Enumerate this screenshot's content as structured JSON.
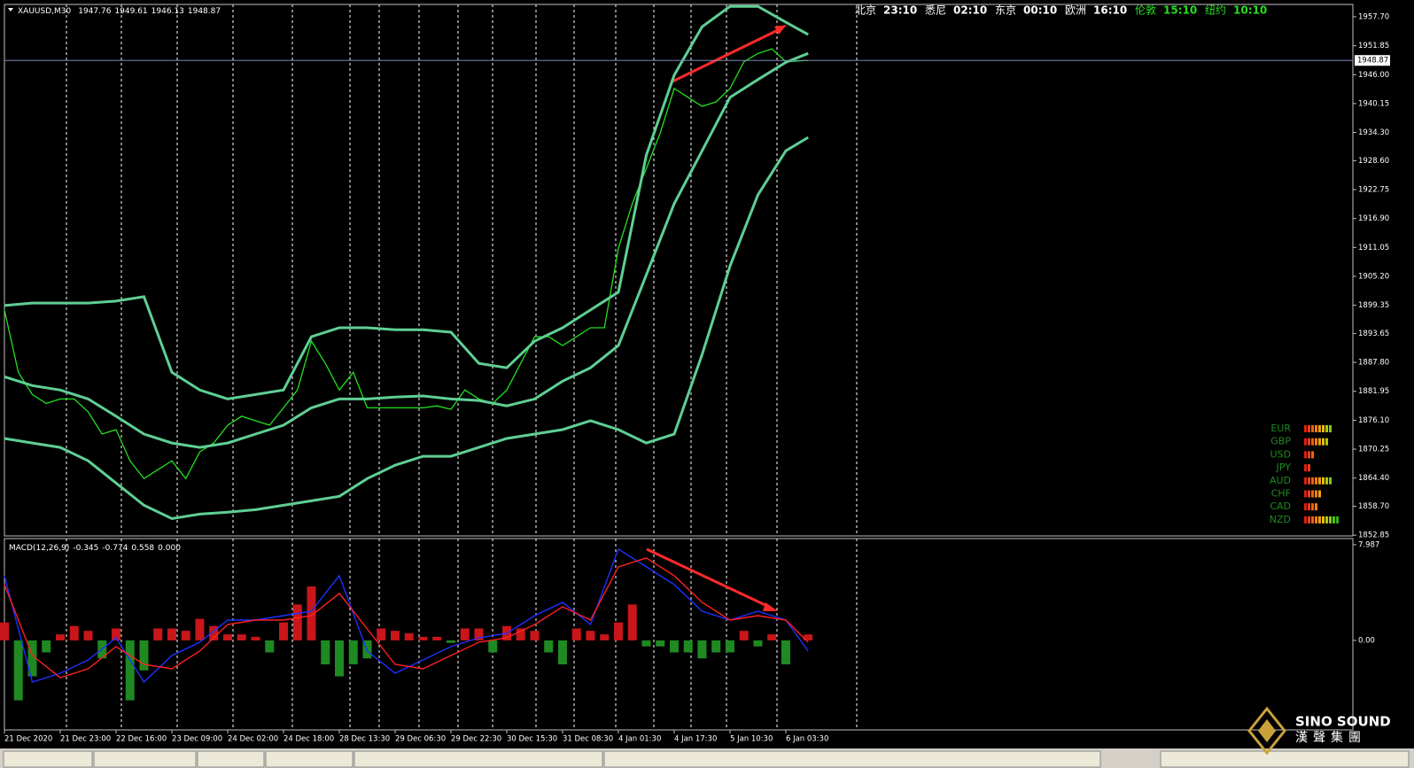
{
  "chart_data": [
    {
      "type": "line",
      "title": "XAUUSD,M30",
      "quote": [
        1947.76,
        1949.61,
        1946.13,
        1948.87
      ],
      "xlim": [
        0,
        24.16
      ],
      "xticks": [
        {
          "value": 0,
          "label": "21 Dec 2020"
        },
        {
          "value": 1,
          "label": "21 Dec 23:00"
        },
        {
          "value": 2,
          "label": "22 Dec 16:00"
        },
        {
          "value": 3,
          "label": "23 Dec 09:00"
        },
        {
          "value": 4,
          "label": "24 Dec 02:00"
        },
        {
          "value": 5,
          "label": "24 Dec 18:00"
        },
        {
          "value": 6,
          "label": "28 Dec 13:30"
        },
        {
          "value": 7,
          "label": "29 Dec 06:30"
        },
        {
          "value": 8,
          "label": "29 Dec 22:30"
        },
        {
          "value": 9,
          "label": "30 Dec 15:30"
        },
        {
          "value": 10,
          "label": "31 Dec 08:30"
        },
        {
          "value": 11,
          "label": "4 Jan 01:30"
        },
        {
          "value": 12,
          "label": "4 Jan 17:30"
        },
        {
          "value": 13,
          "label": "5 Jan 10:30"
        },
        {
          "value": 14,
          "label": "6 Jan 03:30"
        }
      ],
      "ylim": [
        1852.7,
        1960.2
      ],
      "yticks": [
        {
          "value": 1957.7,
          "label": "1957.70"
        },
        {
          "value": 1951.85,
          "label": "1951.85"
        },
        {
          "value": 1946,
          "label": "1946.00"
        },
        {
          "value": 1940.15,
          "label": "1940.15"
        },
        {
          "value": 1934.3,
          "label": "1934.30"
        },
        {
          "value": 1928.6,
          "label": "1928.60"
        },
        {
          "value": 1922.75,
          "label": "1922.75"
        },
        {
          "value": 1916.9,
          "label": "1916.90"
        },
        {
          "value": 1911.05,
          "label": "1911.05"
        },
        {
          "value": 1905.2,
          "label": "1905.20"
        },
        {
          "value": 1899.35,
          "label": "1899.35"
        },
        {
          "value": 1893.65,
          "label": "1893.65"
        },
        {
          "value": 1887.8,
          "label": "1887.80"
        },
        {
          "value": 1881.95,
          "label": "1881.95"
        },
        {
          "value": 1876.1,
          "label": "1876.10"
        },
        {
          "value": 1870.25,
          "label": "1870.25"
        },
        {
          "value": 1864.4,
          "label": "1864.40"
        },
        {
          "value": 1858.7,
          "label": "1858.70"
        },
        {
          "value": 1852.85,
          "label": "1852.85"
        }
      ],
      "series": [
        {
          "color": "#22e01e",
          "x": [
            0,
            0.25,
            0.5,
            0.75,
            1,
            1.25,
            1.5,
            1.75,
            2,
            2.25,
            2.5,
            2.75,
            3,
            3.25,
            3.5,
            3.75,
            4,
            4.25,
            4.5,
            4.75,
            5,
            5.25,
            5.5,
            5.75,
            6,
            6.25,
            6.5,
            6.75,
            7,
            7.25,
            7.5,
            7.75,
            8,
            8.25,
            8.5,
            8.75,
            9,
            9.25,
            9.5,
            9.75,
            10,
            10.25,
            10.5,
            10.75,
            11,
            11.25,
            11.5,
            11.75,
            12,
            12.25,
            12.5,
            12.75,
            13,
            13.25,
            13.5,
            13.75,
            14,
            14.4
          ],
          "values": [
            1898.4,
            1885.8,
            1881.3,
            1879.5,
            1880.4,
            1880.4,
            1877.8,
            1873.3,
            1874.2,
            1867.9,
            1864.3,
            1866.1,
            1867.9,
            1864.3,
            1869.7,
            1871.5,
            1875.1,
            1876.9,
            1876.0,
            1875.1,
            1878.6,
            1882.2,
            1892.1,
            1887.6,
            1882.2,
            1885.8,
            1878.6,
            1878.6,
            1878.6,
            1878.6,
            1878.6,
            1879.0,
            1878.3,
            1882.2,
            1880.4,
            1879.5,
            1882.2,
            1887.6,
            1893.0,
            1893.0,
            1891.2,
            1893.0,
            1894.8,
            1894.8,
            1910.9,
            1919.9,
            1927.0,
            1934.2,
            1943.2,
            1941.4,
            1939.6,
            1940.5,
            1943.2,
            1948.6,
            1950.3,
            1951.2,
            1948.6,
            1948.9
          ]
        },
        {
          "color": "#5fcf94",
          "x": [
            0,
            0.5,
            1,
            1.5,
            2,
            2.5,
            3,
            3.5,
            4,
            4.5,
            5,
            5.5,
            6,
            6.5,
            7,
            7.5,
            8,
            8.5,
            9,
            9.5,
            10,
            10.5,
            11,
            11.5,
            12,
            12.5,
            13,
            13.5,
            14,
            14.4
          ],
          "values": [
            1899.3,
            1899.8,
            1899.8,
            1899.8,
            1900.2,
            1901.1,
            1885.8,
            1882.2,
            1880.4,
            1881.3,
            1882.2,
            1893.0,
            1894.8,
            1894.8,
            1894.4,
            1894.4,
            1893.9,
            1887.6,
            1886.7,
            1892.1,
            1894.8,
            1898.4,
            1902.0,
            1929.7,
            1945.9,
            1955.7,
            1959.8,
            1959.8,
            1956.6,
            1954.1
          ]
        },
        {
          "color": "#5fcf94",
          "x": [
            0,
            0.5,
            1,
            1.5,
            2,
            2.5,
            3,
            3.5,
            4,
            4.5,
            5,
            5.5,
            6,
            6.5,
            7,
            7.5,
            8,
            8.5,
            9,
            9.5,
            10,
            10.5,
            11,
            11.5,
            12,
            12.5,
            13,
            13.5,
            14,
            14.4
          ],
          "values": [
            1884.9,
            1883.1,
            1882.2,
            1880.4,
            1876.9,
            1873.3,
            1871.5,
            1870.6,
            1871.5,
            1873.3,
            1875.1,
            1878.6,
            1880.4,
            1880.4,
            1880.8,
            1881.0,
            1880.4,
            1880.1,
            1879.0,
            1880.4,
            1884.0,
            1886.7,
            1891.2,
            1905.5,
            1919.9,
            1930.6,
            1941.4,
            1945.0,
            1948.5,
            1950.3
          ]
        },
        {
          "color": "#5fcf94",
          "x": [
            0,
            0.5,
            1,
            1.5,
            2,
            2.5,
            3,
            3.5,
            4,
            4.5,
            5,
            5.5,
            6,
            6.5,
            7,
            7.5,
            8,
            8.5,
            9,
            9.5,
            10,
            10.5,
            11,
            11.5,
            12,
            12.5,
            13,
            13.5,
            14,
            14.4
          ],
          "values": [
            1872.4,
            1871.5,
            1870.6,
            1867.9,
            1863.4,
            1858.9,
            1856.2,
            1857.1,
            1857.5,
            1858.0,
            1858.9,
            1859.8,
            1860.7,
            1864.3,
            1867.0,
            1868.8,
            1868.8,
            1870.6,
            1872.4,
            1873.3,
            1874.2,
            1876.0,
            1874.2,
            1871.5,
            1873.3,
            1889.4,
            1907.3,
            1921.7,
            1930.6,
            1933.3
          ]
        }
      ]
    },
    {
      "type": "macd",
      "title": "MACD(12,26,9)",
      "readings": [
        -0.345,
        -0.774,
        0.558,
        {
          "value": 0,
          "label": "0.000"
        }
      ],
      "xlim": [
        0,
        24.16
      ],
      "ylim": [
        -7.47,
        8.5
      ],
      "yticks": [
        7.987,
        {
          "value": 0,
          "label": "0.00"
        }
      ],
      "histogram": {
        "up_color": "#c8161a",
        "down_color": "#1f8a22",
        "x": [
          0,
          0.25,
          0.5,
          0.75,
          1,
          1.25,
          1.5,
          1.75,
          2,
          2.25,
          2.5,
          2.75,
          3,
          3.25,
          3.5,
          3.75,
          4,
          4.25,
          4.5,
          4.75,
          5,
          5.25,
          5.5,
          5.75,
          6,
          6.25,
          6.5,
          6.75,
          7,
          7.25,
          7.5,
          7.75,
          8,
          8.25,
          8.5,
          8.75,
          9,
          9.25,
          9.5,
          9.75,
          10,
          10.25,
          10.5,
          10.75,
          11,
          11.25,
          11.5,
          11.75,
          12,
          12.25,
          12.5,
          12.75,
          13,
          13.25,
          13.5,
          13.75,
          14,
          14.4
        ],
        "values": [
          1.5,
          -5,
          -3,
          -1,
          0.5,
          1.2,
          0.8,
          -1.5,
          1,
          -5,
          -2.5,
          1,
          1,
          0.8,
          1.8,
          1.2,
          0.5,
          0.5,
          0.3,
          -1,
          1.5,
          3,
          4.5,
          -2,
          -3,
          -2,
          -1.5,
          1,
          0.8,
          0.6,
          0.3,
          0.3,
          -0.2,
          1,
          1,
          -1,
          1.2,
          1,
          0.8,
          -1,
          -2,
          1,
          0.8,
          0.5,
          1.5,
          3,
          -0.5,
          -0.5,
          -1,
          -1,
          -1.5,
          -1,
          -1,
          0.8,
          -0.5,
          0.5,
          -2,
          0.5
        ]
      },
      "series": [
        {
          "color": "#2030ff",
          "x": [
            0,
            0.5,
            1,
            1.5,
            2,
            2.5,
            3,
            3.5,
            4,
            4.5,
            5,
            5.5,
            6,
            6.5,
            7,
            7.5,
            8,
            8.5,
            9,
            9.5,
            10,
            10.5,
            11,
            11.5,
            12,
            12.5,
            13,
            13.5,
            14,
            14.4
          ],
          "values": [
            5.4,
            -3.48,
            -2.74,
            -1.63,
            0.22,
            -3.48,
            -1.26,
            -0.15,
            1.7,
            1.7,
            2.07,
            2.44,
            5.4,
            -0.89,
            -2.74,
            -1.63,
            -0.52,
            0.22,
            0.59,
            2.07,
            3.18,
            1.33,
            7.62,
            6.14,
            4.66,
            2.44,
            1.7,
            2.44,
            1.7,
            -0.89
          ]
        },
        {
          "color": "#ff2020",
          "x": [
            0,
            0.5,
            1,
            1.5,
            2,
            2.5,
            3,
            3.5,
            4,
            4.5,
            5,
            5.5,
            6,
            6.5,
            7,
            7.5,
            8,
            8.5,
            9,
            9.5,
            10,
            10.5,
            11,
            11.5,
            12,
            12.5,
            13,
            13.5,
            14,
            14.4
          ],
          "values": [
            4.66,
            -1.26,
            -3.11,
            -2.37,
            -0.52,
            -2.0,
            -2.37,
            -0.89,
            1.33,
            1.7,
            1.7,
            2.07,
            3.92,
            0.96,
            -2.0,
            -2.37,
            -1.26,
            -0.15,
            0.22,
            1.33,
            2.81,
            1.7,
            6.14,
            6.88,
            5.4,
            3.18,
            1.7,
            2.07,
            1.7,
            -0.15
          ]
        }
      ]
    }
  ],
  "clocks": [
    {
      "city": "北京",
      "time": "23:10"
    },
    {
      "city": "悉尼",
      "time": "02:10"
    },
    {
      "city": "东京",
      "time": "00:10"
    },
    {
      "city": "欧洲",
      "time": "16:10"
    },
    {
      "city": "伦敦",
      "time": "15:10"
    },
    {
      "city": "纽约",
      "time": "10:10"
    }
  ],
  "strength": {
    "categories": [
      "EUR",
      "GBP",
      "USD",
      "JPY",
      "AUD",
      "CHF",
      "CAD",
      "NZD"
    ],
    "values": [
      8,
      7,
      3,
      2,
      8,
      5,
      4,
      10
    ]
  },
  "watermark": {
    "brand": "SINO SOUND",
    "chinese": "漢聲集團"
  }
}
